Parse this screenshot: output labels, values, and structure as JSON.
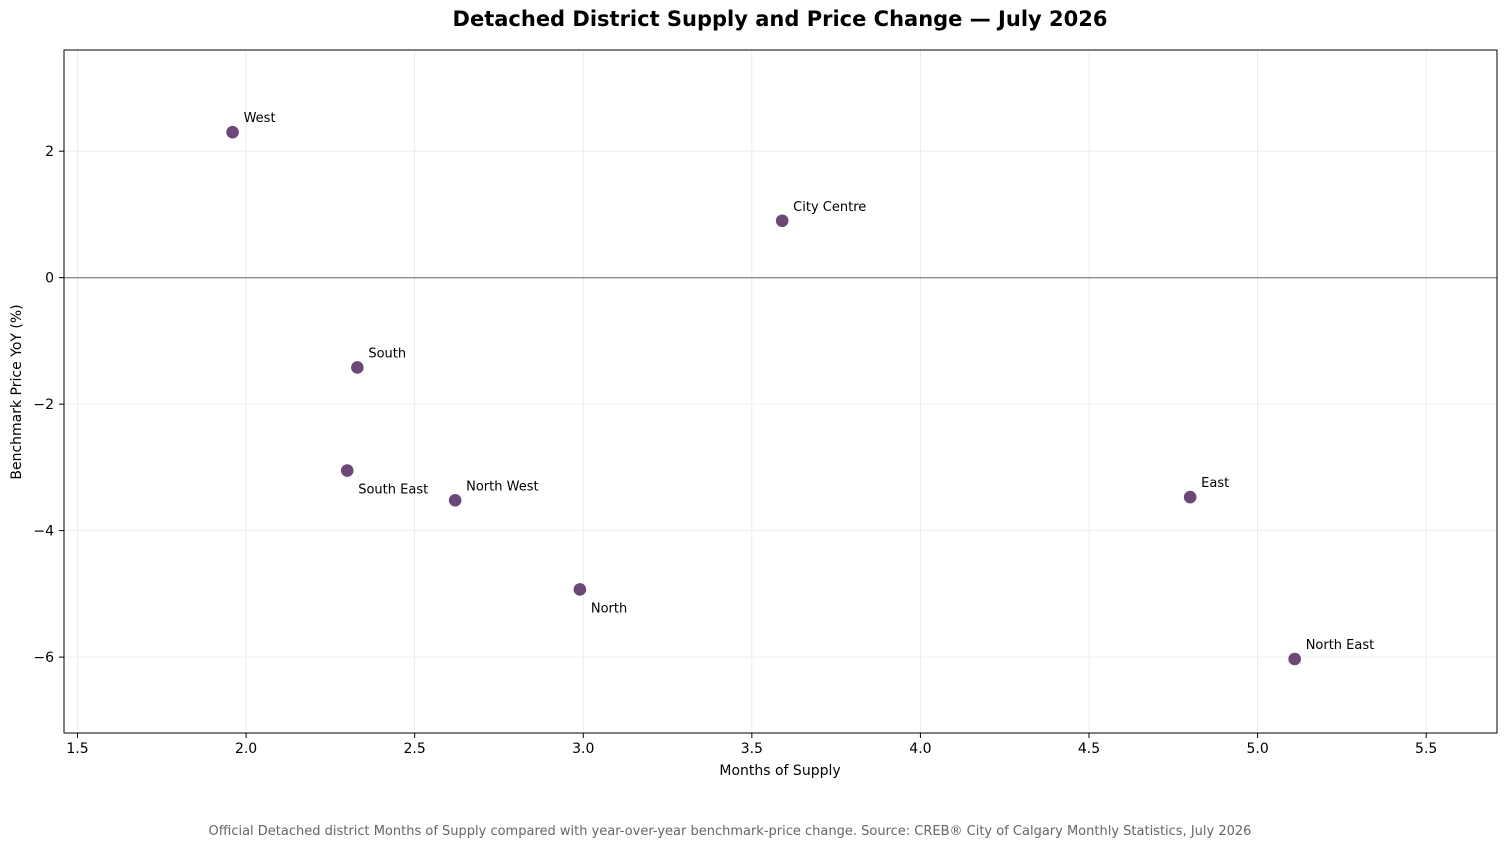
{
  "chart_data": {
    "type": "scatter",
    "title": "Detached District Supply and Price Change — July 2026",
    "xlabel": "Months of Supply",
    "ylabel": "Benchmark Price YoY (%)",
    "xlim": [
      1.46,
      5.71
    ],
    "ylim": [
      -7.2,
      3.6
    ],
    "xticks": [
      1.5,
      2.0,
      2.5,
      3.0,
      3.5,
      4.0,
      4.5,
      5.0,
      5.5
    ],
    "xtick_labels": [
      "1.5",
      "2.0",
      "2.5",
      "3.0",
      "3.5",
      "4.0",
      "4.5",
      "5.0",
      "5.5"
    ],
    "yticks": [
      2,
      0,
      -2,
      -4,
      -6
    ],
    "ytick_labels": [
      "2",
      "0",
      "−2",
      "−4",
      "−6"
    ],
    "grid": true,
    "reference_line_y": 0,
    "marker_color": "#6b4878",
    "points": [
      {
        "label": "West",
        "x": 1.96,
        "y": 2.3,
        "label_position": "above-right"
      },
      {
        "label": "City Centre",
        "x": 3.59,
        "y": 0.9,
        "label_position": "above-right"
      },
      {
        "label": "South",
        "x": 2.33,
        "y": -1.42,
        "label_position": "above-right"
      },
      {
        "label": "South East",
        "x": 2.3,
        "y": -3.05,
        "label_position": "below-right"
      },
      {
        "label": "North West",
        "x": 2.62,
        "y": -3.52,
        "label_position": "above-right"
      },
      {
        "label": "North",
        "x": 2.99,
        "y": -4.93,
        "label_position": "below-right"
      },
      {
        "label": "East",
        "x": 4.8,
        "y": -3.47,
        "label_position": "above-right"
      },
      {
        "label": "North East",
        "x": 5.11,
        "y": -6.03,
        "label_position": "above-right"
      }
    ]
  },
  "footnote": "Official Detached district Months of Supply compared with year-over-year benchmark-price change.  Source: CREB® City of Calgary Monthly Statistics, July 2026"
}
